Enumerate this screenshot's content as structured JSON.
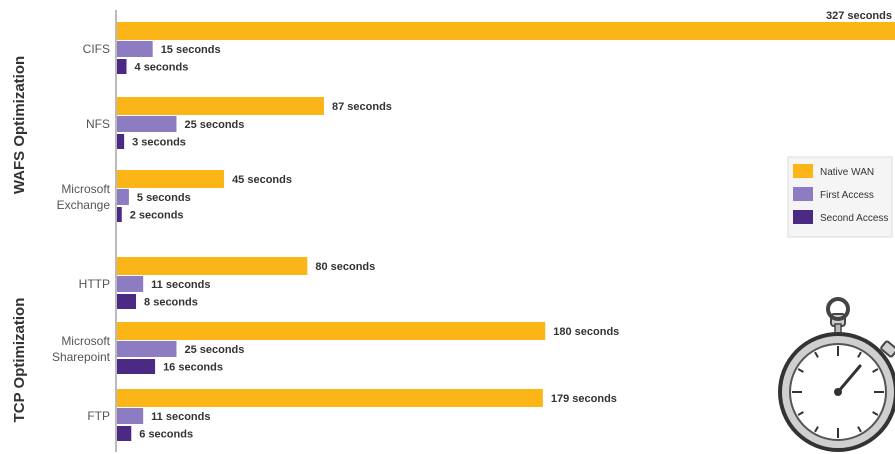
{
  "chart_data": {
    "type": "bar",
    "orientation": "horizontal",
    "title": "",
    "xlabel": "",
    "ylabel": "",
    "grid": false,
    "legend_position": "right",
    "groups": [
      {
        "name": "WAFS Optimization",
        "categories": [
          "CIFS",
          "NFS",
          "Microsoft Exchange"
        ]
      },
      {
        "name": "TCP Optimization",
        "categories": [
          "HTTP",
          "Microsoft Sharepoint",
          "FTP"
        ]
      }
    ],
    "categories": [
      "CIFS",
      "NFS",
      "Microsoft Exchange",
      "HTTP",
      "Microsoft Sharepoint",
      "FTP"
    ],
    "category_lines": [
      [
        "CIFS"
      ],
      [
        "NFS"
      ],
      [
        "Microsoft",
        "Exchange"
      ],
      [
        "HTTP"
      ],
      [
        "Microsoft",
        "Sharepoint"
      ],
      [
        "FTP"
      ]
    ],
    "series": [
      {
        "name": "Native WAN",
        "color": "#FBB516",
        "values": [
          327,
          87,
          45,
          80,
          180,
          179
        ],
        "labels": [
          "327 seconds",
          "87 seconds",
          "45 seconds",
          "80 seconds",
          "180 seconds",
          "179 seconds"
        ]
      },
      {
        "name": "First Access",
        "color": "#8E7CC3",
        "values": [
          15,
          25,
          5,
          11,
          25,
          11
        ],
        "labels": [
          "15 seconds",
          "25 seconds",
          "5 seconds",
          "11 seconds",
          "25 seconds",
          "11 seconds"
        ]
      },
      {
        "name": "Second Access",
        "color": "#4B2A84",
        "values": [
          4,
          3,
          2,
          8,
          16,
          6
        ],
        "labels": [
          "4 seconds",
          "3 seconds",
          "2 seconds",
          "8 seconds",
          "16 seconds",
          "6 seconds"
        ]
      }
    ],
    "xlim": [
      0,
      327
    ]
  },
  "icons": {
    "stopwatch": "stopwatch-icon"
  }
}
